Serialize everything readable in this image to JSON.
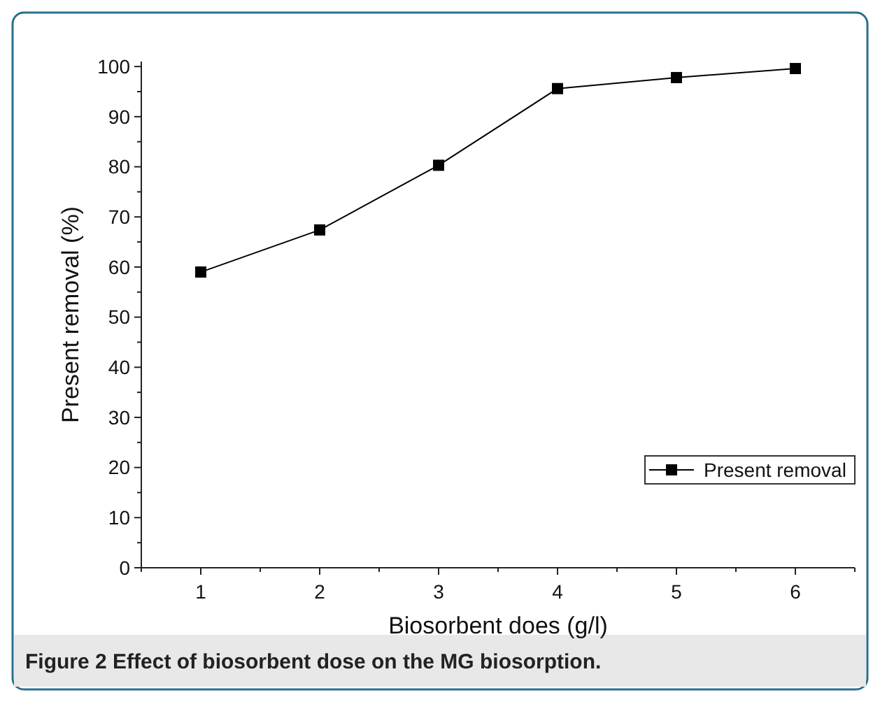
{
  "chart_data": {
    "type": "line",
    "xlabel": "Biosorbent does (g/l)",
    "ylabel": "Present removal (%)",
    "x": [
      1,
      2,
      3,
      4,
      5,
      6
    ],
    "series": [
      {
        "name": "Present removal",
        "color": "#000000",
        "values": [
          59,
          67.4,
          80.3,
          95.6,
          97.8,
          99.6
        ]
      }
    ],
    "xlim": [
      0.5,
      6.5
    ],
    "xticks": [
      1,
      2,
      3,
      4,
      5,
      6
    ],
    "ylim": [
      0,
      101
    ],
    "yticks": [
      0,
      10,
      20,
      30,
      40,
      50,
      60,
      70,
      80,
      90,
      100
    ],
    "marker": "square",
    "legend": "bottom right",
    "grid": false,
    "annotations": [
      "Figure 2 Effect of biosorbent dose on the MG biosorption."
    ]
  }
}
